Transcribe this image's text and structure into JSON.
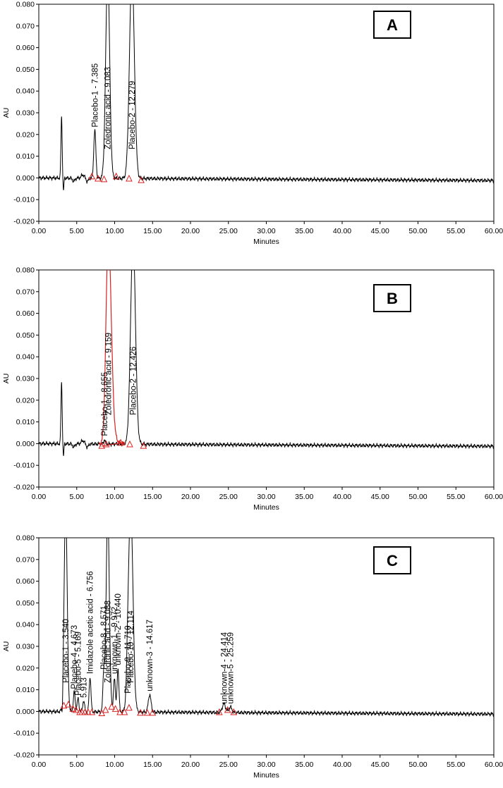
{
  "chart_data": [
    {
      "type": "line",
      "panel_label": "A",
      "xlabel": "Minutes",
      "ylabel": "AU",
      "xlim": [
        0,
        60
      ],
      "ylim": [
        -0.02,
        0.08
      ],
      "x_ticks": [
        "0.00",
        "5.00",
        "10.00",
        "15.00",
        "20.00",
        "25.00",
        "30.00",
        "35.00",
        "40.00",
        "45.00",
        "50.00",
        "55.00",
        "60.00"
      ],
      "y_ticks": [
        "-0.020",
        "-0.010",
        "0.000",
        "0.010",
        "0.020",
        "0.030",
        "0.040",
        "0.050",
        "0.060",
        "0.070",
        "0.080"
      ],
      "line_color": "#000000",
      "peaks": [
        {
          "t": 3.0,
          "h": 0.028,
          "w": 0.08
        },
        {
          "t": 3.25,
          "h": -0.006,
          "w": 0.06
        },
        {
          "t": 4.6,
          "h": -0.0015,
          "w": 0.15
        },
        {
          "t": 5.8,
          "h": 0.0015,
          "w": 0.2
        },
        {
          "t": 6.4,
          "h": -0.0015,
          "w": 0.15
        },
        {
          "t": 7.385,
          "h": 0.022,
          "w": 0.14
        },
        {
          "t": 9.083,
          "h": 0.095,
          "w": 0.26
        },
        {
          "t": 12.279,
          "h": 0.095,
          "w": 0.32
        }
      ],
      "labels": [
        {
          "t": 7.385,
          "text": "Placebo-1 - 7.385"
        },
        {
          "t": 9.083,
          "text": "Zoledronic acid - 9.083"
        },
        {
          "t": 12.279,
          "text": "Placebo-2 - 12.279"
        }
      ],
      "integration_marks": [
        {
          "t": 7.0,
          "y": 0.0005
        },
        {
          "t": 7.8,
          "y": -0.0005
        },
        {
          "t": 8.6,
          "y": -0.0008
        },
        {
          "t": 10.2,
          "y": 0.0005
        },
        {
          "t": 11.9,
          "y": -0.0005
        },
        {
          "t": 13.5,
          "y": -0.0012
        }
      ],
      "integration_color": "#d82020"
    },
    {
      "type": "line",
      "panel_label": "B",
      "xlabel": "Minutes",
      "ylabel": "AU",
      "xlim": [
        0,
        60
      ],
      "ylim": [
        -0.02,
        0.08
      ],
      "x_ticks": [
        "0.00",
        "5.00",
        "10.00",
        "15.00",
        "20.00",
        "25.00",
        "30.00",
        "35.00",
        "40.00",
        "45.00",
        "50.00",
        "55.00",
        "60.00"
      ],
      "y_ticks": [
        "-0.020",
        "-0.010",
        "0.000",
        "0.010",
        "0.020",
        "0.030",
        "0.040",
        "0.050",
        "0.060",
        "0.070",
        "0.080"
      ],
      "line_color": "#000000",
      "peaks": [
        {
          "t": 3.0,
          "h": 0.028,
          "w": 0.08
        },
        {
          "t": 3.25,
          "h": -0.006,
          "w": 0.06
        },
        {
          "t": 4.6,
          "h": -0.0015,
          "w": 0.15
        },
        {
          "t": 5.8,
          "h": 0.0015,
          "w": 0.2
        },
        {
          "t": 6.4,
          "h": -0.0015,
          "w": 0.15
        },
        {
          "t": 8.655,
          "h": 0.002,
          "w": 0.1
        },
        {
          "t": 12.426,
          "h": 0.095,
          "w": 0.32
        }
      ],
      "red_peak": {
        "t": 9.159,
        "h": 0.095,
        "w": 0.3,
        "tail": 0.9,
        "color": "#d82020"
      },
      "labels": [
        {
          "t": 8.655,
          "text": "Placebo-1 - 8.655"
        },
        {
          "t": 9.159,
          "text": "Zoledronic acid - 9.159"
        },
        {
          "t": 12.426,
          "text": "Placebo-2 - 12.426"
        }
      ],
      "integration_marks": [
        {
          "t": 8.3,
          "y": -0.0012
        },
        {
          "t": 8.9,
          "y": -0.0005
        },
        {
          "t": 10.8,
          "y": 0.0002
        },
        {
          "t": 12.0,
          "y": -0.0005
        },
        {
          "t": 13.8,
          "y": -0.0012
        }
      ],
      "integration_color": "#d82020"
    },
    {
      "type": "line",
      "panel_label": "C",
      "xlabel": "Minutes",
      "ylabel": "AU",
      "xlim": [
        0,
        60
      ],
      "ylim": [
        -0.02,
        0.08
      ],
      "x_ticks": [
        "0.00",
        "5.00",
        "10.00",
        "15.00",
        "20.00",
        "25.00",
        "30.00",
        "35.00",
        "40.00",
        "45.00",
        "50.00",
        "55.00",
        "60.00"
      ],
      "y_ticks": [
        "-0.020",
        "-0.010",
        "0.000",
        "0.010",
        "0.020",
        "0.030",
        "0.040",
        "0.050",
        "0.060",
        "0.070",
        "0.080"
      ],
      "line_color": "#000000",
      "peaks": [
        {
          "t": 3.1,
          "h": -0.006,
          "w": 0.06
        },
        {
          "t": 3.54,
          "h": 0.095,
          "w": 0.2
        },
        {
          "t": 4.673,
          "h": 0.009,
          "w": 0.12
        },
        {
          "t": 5.169,
          "h": 0.006,
          "w": 0.12
        },
        {
          "t": 5.913,
          "h": 0.005,
          "w": 0.12
        },
        {
          "t": 6.756,
          "h": 0.016,
          "w": 0.12
        },
        {
          "t": 8.571,
          "h": 0.018,
          "w": 0.12
        },
        {
          "t": 9.088,
          "h": 0.095,
          "w": 0.2
        },
        {
          "t": 9.5,
          "h": 0.004,
          "w": 0.1
        },
        {
          "t": 9.972,
          "h": 0.016,
          "w": 0.12
        },
        {
          "t": 10.44,
          "h": 0.02,
          "w": 0.12
        },
        {
          "t": 11.71,
          "h": 0.007,
          "w": 0.12
        },
        {
          "t": 12.114,
          "h": 0.095,
          "w": 0.3
        },
        {
          "t": 14.617,
          "h": 0.008,
          "w": 0.18
        },
        {
          "t": 24.414,
          "h": 0.004,
          "w": 0.22
        },
        {
          "t": 25.259,
          "h": 0.0025,
          "w": 0.2
        }
      ],
      "labels": [
        {
          "t": 3.54,
          "text": "Placebo-1 - 3.540"
        },
        {
          "t": 4.673,
          "text": "Placebo-4 - 4.673"
        },
        {
          "t": 5.169,
          "text": "Placebo-5 - 5.169"
        },
        {
          "t": 5.913,
          "text": "5.913"
        },
        {
          "t": 6.756,
          "text": "Imidazole acetic acid - 6.756"
        },
        {
          "t": 8.571,
          "text": "Placebo-8 - 8.571"
        },
        {
          "t": 9.088,
          "text": "Zoledronic acid - 9.088"
        },
        {
          "t": 9.972,
          "text": "unknown-1 - 9.972"
        },
        {
          "t": 10.44,
          "text": "unknown-2 - 10.440"
        },
        {
          "t": 11.71,
          "text": "Placebo-9 - 11.710"
        },
        {
          "t": 12.114,
          "text": "Placebo-10 - 12.114"
        },
        {
          "t": 14.617,
          "text": "unknown-3 - 14.617"
        },
        {
          "t": 24.414,
          "text": "unknown-4 - 24.414"
        },
        {
          "t": 25.259,
          "text": "unknown-5 - 25.259"
        }
      ],
      "integration_marks": [
        {
          "t": 3.3,
          "y": 0.0025
        },
        {
          "t": 3.9,
          "y": 0.003
        },
        {
          "t": 4.5,
          "y": 0.001
        },
        {
          "t": 4.9,
          "y": 0.0005
        },
        {
          "t": 5.4,
          "y": -0.0005
        },
        {
          "t": 5.7,
          "y": -0.0005
        },
        {
          "t": 6.1,
          "y": -0.0005
        },
        {
          "t": 6.5,
          "y": -0.0005
        },
        {
          "t": 7.0,
          "y": -0.0005
        },
        {
          "t": 8.3,
          "y": -0.001
        },
        {
          "t": 8.8,
          "y": 0.0005
        },
        {
          "t": 9.6,
          "y": 0.002
        },
        {
          "t": 10.1,
          "y": 0.001
        },
        {
          "t": 10.7,
          "y": -0.0005
        },
        {
          "t": 11.3,
          "y": -0.0005
        },
        {
          "t": 11.9,
          "y": 0.0015
        },
        {
          "t": 13.4,
          "y": -0.0008
        },
        {
          "t": 14.3,
          "y": -0.0008
        },
        {
          "t": 15.0,
          "y": -0.0008
        },
        {
          "t": 23.8,
          "y": -0.0005
        },
        {
          "t": 24.9,
          "y": 0.0005
        },
        {
          "t": 25.7,
          "y": -0.0005
        }
      ],
      "integration_color": "#d82020"
    }
  ]
}
